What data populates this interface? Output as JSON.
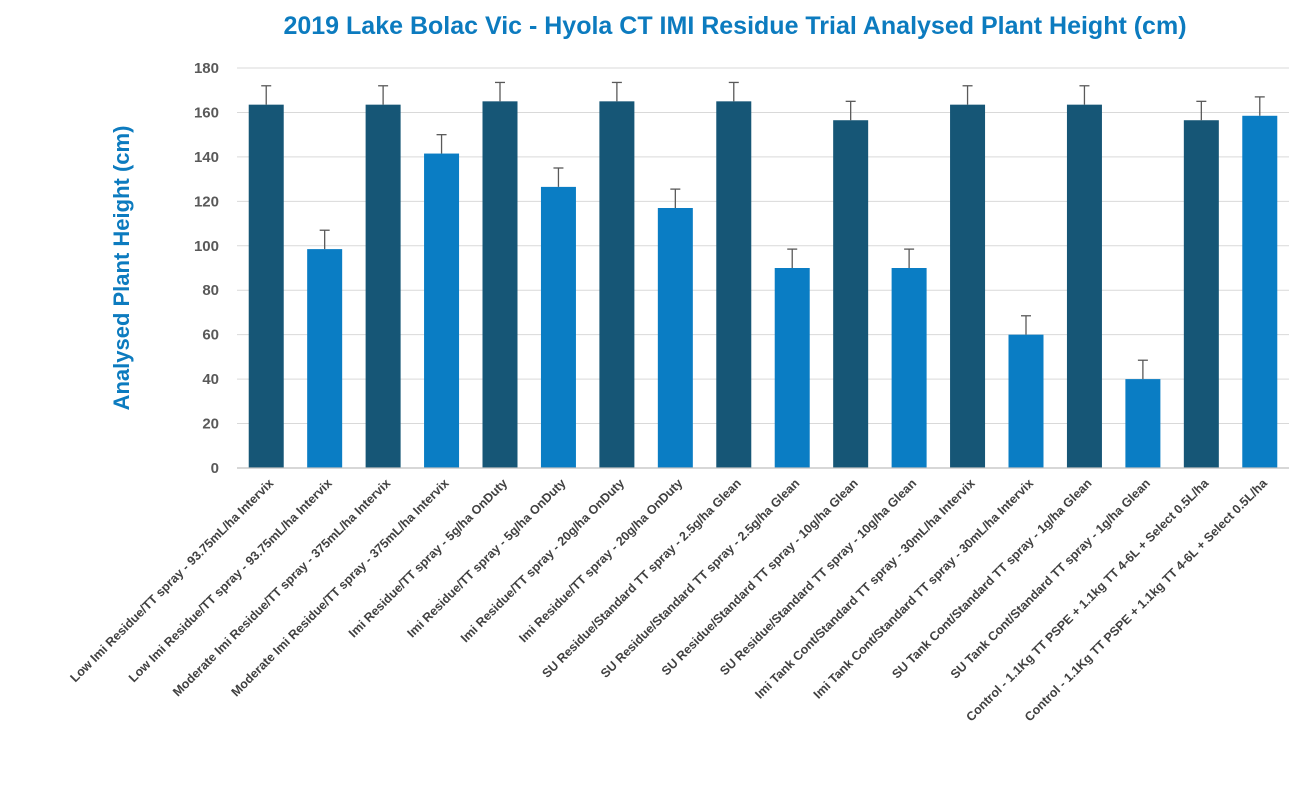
{
  "chart_data": {
    "type": "bar",
    "title": "2019 Lake Bolac Vic - Hyola CT IMI Residue Trial Analysed Plant Height (cm)",
    "xlabel": "",
    "ylabel": "Analysed Plant Height (cm)",
    "ylim": [
      0,
      180
    ],
    "yticks": [
      0,
      20,
      40,
      60,
      80,
      100,
      120,
      140,
      160,
      180
    ],
    "grid": true,
    "legend": "none",
    "colors": {
      "dark": "#165676",
      "light": "#0a7dc4",
      "error_bar": "#595959",
      "title": "#0c7bbf",
      "grid": "#d9d9d9"
    },
    "categories": [
      "Low Imi Residue/TT spray - 93.75mL/ha Intervix",
      "Low Imi Residue/TT spray - 93.75mL/ha Intervix",
      "Moderate Imi Residue/TT spray - 375mL/ha Intervix",
      "Moderate Imi Residue/TT spray - 375mL/ha Intervix",
      "Imi Residue/TT spray - 5g/ha OnDuty",
      "Imi Residue/TT spray - 5g/ha OnDuty",
      "Imi Residue/TT spray - 20g/ha OnDuty",
      "Imi Residue/TT spray - 20g/ha OnDuty",
      "SU Residue/Standard TT spray - 2.5g/ha Glean",
      "SU Residue/Standard TT spray - 2.5g/ha Glean",
      "SU Residue/Standard TT spray - 10g/ha Glean",
      "SU Residue/Standard TT spray - 10g/ha Glean",
      "Imi Tank Cont/Standard TT spray - 30mL/ha Intervix",
      "Imi Tank Cont/Standard TT spray - 30mL/ha Intervix",
      "SU Tank Cont/Standard TT spray - 1g/ha Glean",
      "SU Tank Cont/Standard TT spray - 1g/ha Glean",
      "Control - 1.1Kg TT PSPE + 1.1kg TT 4-6L + Select 0.5L/ha",
      "Control - 1.1Kg TT PSPE + 1.1kg TT 4-6L + Select 0.5L/ha"
    ],
    "values": [
      163.5,
      98.5,
      163.5,
      141.5,
      165,
      126.5,
      165,
      117,
      165,
      90,
      156.5,
      90,
      163.5,
      60,
      163.5,
      40,
      156.5,
      158.5
    ],
    "error": [
      8.5,
      8.5,
      8.5,
      8.5,
      8.5,
      8.5,
      8.5,
      8.5,
      8.5,
      8.5,
      8.5,
      8.5,
      8.5,
      8.5,
      8.5,
      8.5,
      8.5,
      8.5
    ],
    "bar_color": [
      "dark",
      "light",
      "dark",
      "light",
      "dark",
      "light",
      "dark",
      "light",
      "dark",
      "light",
      "dark",
      "light",
      "dark",
      "light",
      "dark",
      "light",
      "dark",
      "light"
    ]
  }
}
